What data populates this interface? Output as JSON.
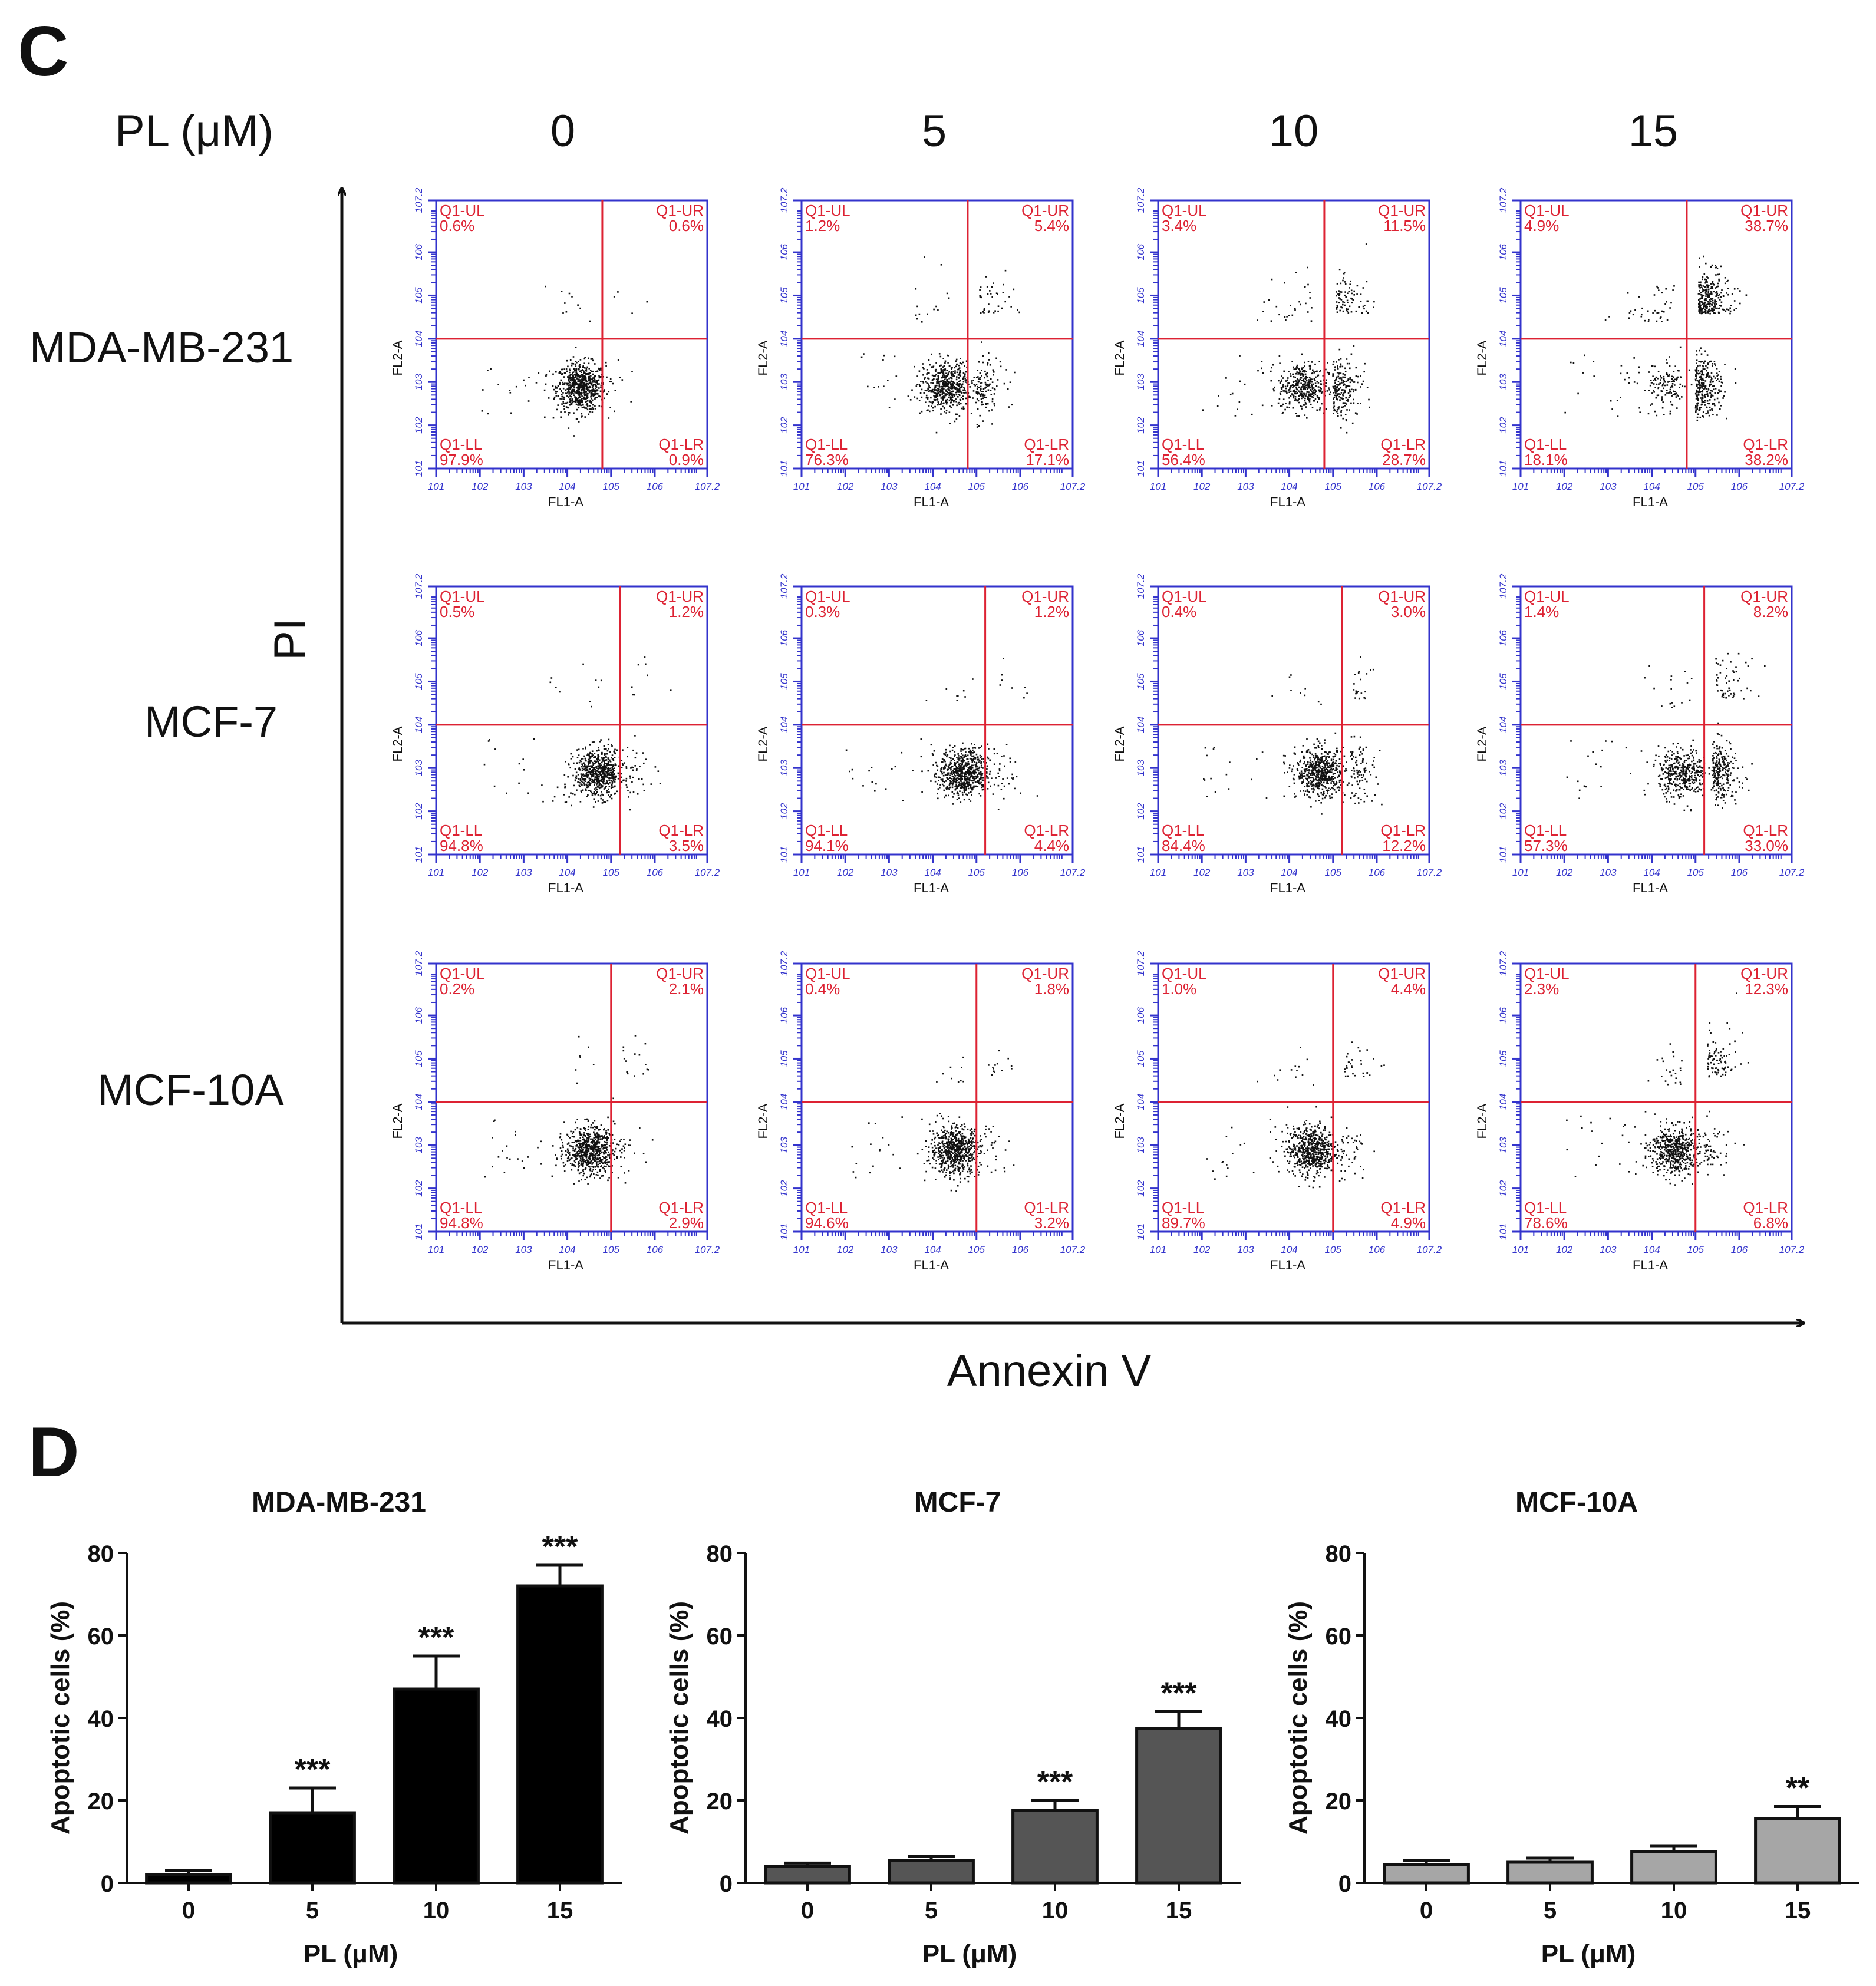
{
  "figure": {
    "panel_c_letter": "C",
    "panel_d_letter": "D",
    "conc_header": "PL (μM)",
    "concentrations": [
      "0",
      "5",
      "10",
      "15"
    ],
    "cell_lines": [
      "MDA-MB-231",
      "MCF-7",
      "MCF-10A"
    ],
    "y_axis_label": "PI",
    "x_axis_label": "Annexin V",
    "flow_x_label": "FL1-A",
    "flow_y_label": "FL2-A",
    "quadrant_names": [
      "Q1-UL",
      "Q1-UR",
      "Q1-LL",
      "Q1-LR"
    ],
    "tick_exponents": [
      "1",
      "2",
      "3",
      "4",
      "5",
      "6",
      "7.2"
    ]
  },
  "colors": {
    "frame": "#3333cc",
    "gate": "#dd2233",
    "quad_text": "#dd2233",
    "dots": "#111111",
    "bar_black": "#000000",
    "bar_dark": "#555555",
    "bar_light": "#a6a6a6"
  },
  "chart_data": [
    {
      "type": "scatter",
      "title": "Flow cytometry, Annexin V / PI",
      "xlabel": "Annexin V",
      "ylabel": "PI",
      "rows": [
        "MDA-MB-231",
        "MCF-7",
        "MCF-10A"
      ],
      "columns_pl_uM": [
        "0",
        "5",
        "10",
        "15"
      ],
      "quadrant_percent": [
        [
          {
            "UL": "0.6%",
            "UR": "0.6%",
            "LL": "97.9%",
            "LR": "0.9%"
          },
          {
            "UL": "1.2%",
            "UR": "5.4%",
            "LL": "76.3%",
            "LR": "17.1%"
          },
          {
            "UL": "3.4%",
            "UR": "11.5%",
            "LL": "56.4%",
            "LR": "28.7%"
          },
          {
            "UL": "4.9%",
            "UR": "38.7%",
            "LL": "18.1%",
            "LR": "38.2%"
          }
        ],
        [
          {
            "UL": "0.5%",
            "UR": "1.2%",
            "LL": "94.8%",
            "LR": "3.5%"
          },
          {
            "UL": "0.3%",
            "UR": "1.2%",
            "LL": "94.1%",
            "LR": "4.4%"
          },
          {
            "UL": "0.4%",
            "UR": "3.0%",
            "LL": "84.4%",
            "LR": "12.2%"
          },
          {
            "UL": "1.4%",
            "UR": "8.2%",
            "LL": "57.3%",
            "LR": "33.0%"
          }
        ],
        [
          {
            "UL": "0.2%",
            "UR": "2.1%",
            "LL": "94.8%",
            "LR": "2.9%"
          },
          {
            "UL": "0.4%",
            "UR": "1.8%",
            "LL": "94.6%",
            "LR": "3.2%"
          },
          {
            "UL": "1.0%",
            "UR": "4.4%",
            "LL": "89.7%",
            "LR": "4.9%"
          },
          {
            "UL": "2.3%",
            "UR": "12.3%",
            "LL": "78.6%",
            "LR": "6.8%"
          }
        ]
      ],
      "gate_x_log": [
        [
          4.8,
          4.8,
          4.8,
          4.8
        ],
        [
          5.2,
          5.2,
          5.2,
          5.2
        ],
        [
          5.0,
          5.0,
          5.0,
          5.0
        ]
      ],
      "gate_y_log": 4.0,
      "axis_range_log": [
        1,
        7.2
      ]
    },
    {
      "type": "bar",
      "title": "MDA-MB-231",
      "xlabel": "PL (μM)",
      "ylabel": "Apoptotic cells (%)",
      "categories": [
        "0",
        "5",
        "10",
        "15"
      ],
      "values": [
        2,
        17,
        47,
        72
      ],
      "errors": [
        1,
        6,
        8,
        5
      ],
      "significance": [
        "",
        "***",
        "***",
        "***"
      ],
      "ylim": [
        0,
        80
      ],
      "yticks": [
        0,
        20,
        40,
        60,
        80
      ],
      "color_key": "bar_black"
    },
    {
      "type": "bar",
      "title": "MCF-7",
      "xlabel": "PL (μM)",
      "ylabel": "Apoptotic cells (%)",
      "categories": [
        "0",
        "5",
        "10",
        "15"
      ],
      "values": [
        4,
        5.5,
        17.5,
        37.5
      ],
      "errors": [
        0.8,
        1,
        2.5,
        4
      ],
      "significance": [
        "",
        "",
        "***",
        "***"
      ],
      "ylim": [
        0,
        80
      ],
      "yticks": [
        0,
        20,
        40,
        60,
        80
      ],
      "color_key": "bar_dark"
    },
    {
      "type": "bar",
      "title": "MCF-10A",
      "xlabel": "PL (μM)",
      "ylabel": "Apoptotic cells (%)",
      "categories": [
        "0",
        "5",
        "10",
        "15"
      ],
      "values": [
        4.5,
        5,
        7.5,
        15.5
      ],
      "errors": [
        1,
        1,
        1.5,
        3
      ],
      "significance": [
        "",
        "",
        "",
        "**"
      ],
      "ylim": [
        0,
        80
      ],
      "yticks": [
        0,
        20,
        40,
        60,
        80
      ],
      "color_key": "bar_light"
    }
  ]
}
